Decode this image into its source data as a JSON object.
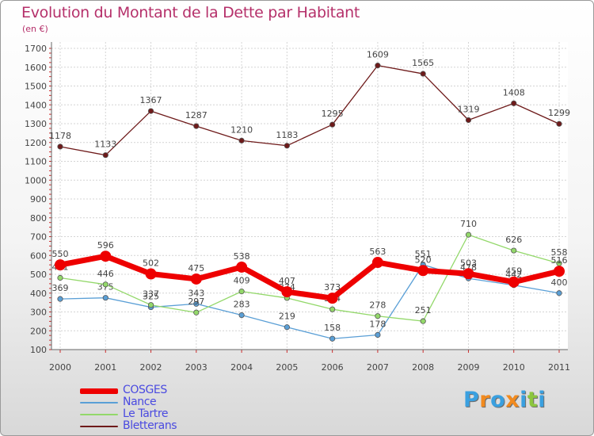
{
  "title": "Evolution du Montant de la Dette par Habitant",
  "subtitle": "(en €)",
  "brand": {
    "letters": [
      "P",
      "r",
      "o",
      "x",
      "i",
      "t",
      "i"
    ],
    "colors": [
      "#3aa0e0",
      "#f28a1e",
      "#3aa0e0",
      "#f28a1e",
      "#3aa0e0",
      "#8cc63e",
      "#3aa0e0"
    ]
  },
  "chart_data": {
    "type": "line",
    "title": "Evolution du Montant de la Dette par Habitant",
    "ylabel": "(en €)",
    "xlabel": "",
    "x": [
      "2000",
      "2001",
      "2002",
      "2003",
      "2004",
      "2005",
      "2006",
      "2007",
      "2008",
      "2009",
      "2010",
      "2011"
    ],
    "ylim": [
      100,
      1700
    ],
    "yticks": [
      "100",
      "200",
      "300",
      "400",
      "500",
      "600",
      "700",
      "800",
      "900",
      "1000",
      "1100",
      "1200",
      "1300",
      "1400",
      "1500",
      "1600",
      "1700"
    ],
    "grid": true,
    "legend": "bottom-left",
    "series": [
      {
        "name": "Bletterans",
        "color": "#6e1a1a",
        "values": [
          1178,
          1133,
          1367,
          1287,
          1210,
          1183,
          1295,
          1609,
          1565,
          1319,
          1408,
          1299
        ],
        "labels": [
          "1178",
          "1133",
          "1367",
          "1287",
          "1210",
          "1183",
          "1295",
          "1609",
          "1565",
          "1319",
          "1408",
          "1299"
        ]
      },
      {
        "name": "Nance",
        "color": "#5a9fd6",
        "values": [
          369,
          375,
          325,
          343,
          283,
          219,
          158,
          178,
          551,
          478,
          442,
          400
        ],
        "labels": [
          "369",
          "375",
          "325",
          "343",
          "283",
          "219",
          "158",
          "178",
          "551",
          "478",
          "442",
          "400"
        ]
      },
      {
        "name": "Le Tartre",
        "color": "#93d86a",
        "values": [
          481,
          446,
          337,
          297,
          409,
          374,
          314,
          278,
          251,
          710,
          626,
          558
        ],
        "labels": [
          "481",
          "446",
          "337",
          "297",
          "409",
          "374",
          "314",
          "278",
          "251",
          "710",
          "626",
          "558"
        ]
      },
      {
        "name": "COSGES",
        "color": "#ee0000",
        "values": [
          550,
          596,
          502,
          475,
          538,
          407,
          373,
          563,
          520,
          503,
          459,
          516
        ],
        "labels": [
          "550",
          "596",
          "502",
          "475",
          "538",
          "407",
          "373",
          "563",
          "520",
          "503",
          "459",
          "516"
        ]
      }
    ],
    "legend_order": [
      "COSGES",
      "Nance",
      "Le Tartre",
      "Bletterans"
    ]
  }
}
